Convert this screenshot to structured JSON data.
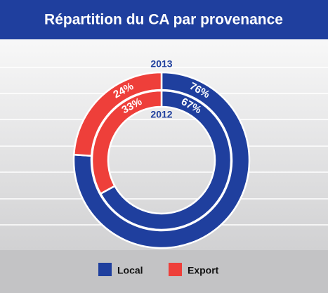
{
  "chart_data": {
    "type": "nested-donut",
    "title": "Répartition du CA par provenance",
    "categories": [
      "Local",
      "Export"
    ],
    "colors": [
      "#1f3f9e",
      "#ee3f3a"
    ],
    "series": [
      {
        "name": "2013",
        "values": [
          76,
          24
        ],
        "value_labels": [
          "76%",
          "24%"
        ]
      },
      {
        "name": "2012",
        "values": [
          67,
          33
        ],
        "value_labels": [
          "67%",
          "33%"
        ]
      }
    ]
  }
}
